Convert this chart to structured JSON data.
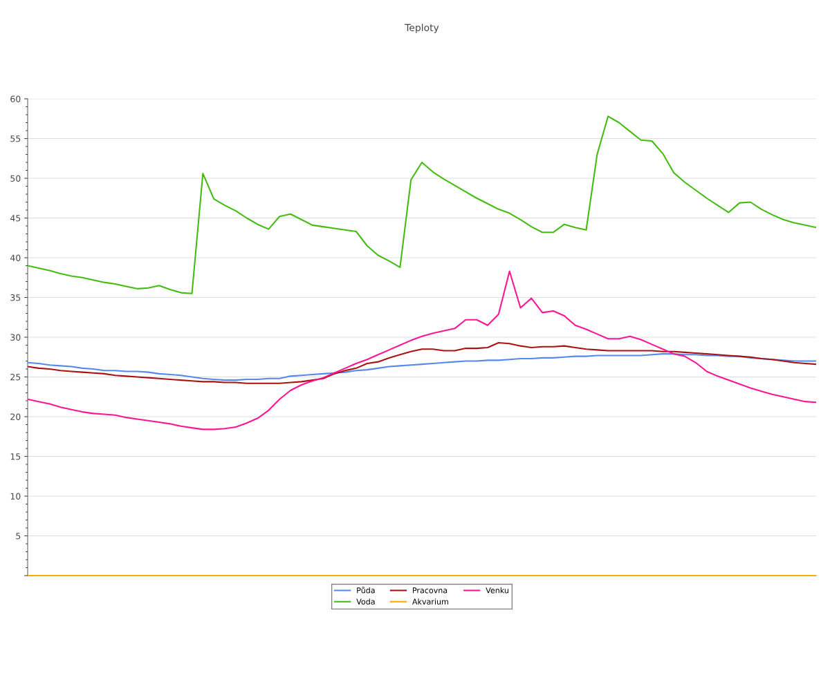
{
  "chart_data": {
    "type": "line",
    "title": "Teploty",
    "ylim": [
      0,
      60
    ],
    "categories": [
      null,
      null,
      null,
      null,
      null,
      null,
      null,
      null,
      null,
      null,
      null,
      null,
      null,
      null,
      null,
      null,
      null,
      null,
      null,
      null,
      null,
      null,
      null,
      null,
      null,
      null,
      null,
      null,
      null,
      null,
      null,
      null,
      null,
      null,
      null,
      null,
      null,
      null,
      null,
      null,
      null,
      null,
      null,
      null,
      null,
      null,
      null,
      null,
      null,
      null,
      null,
      null,
      null,
      null,
      null,
      null,
      null,
      null,
      null,
      null,
      null,
      null,
      null,
      null,
      null,
      null,
      null,
      null,
      null,
      null,
      null,
      null,
      null
    ],
    "yticks": [
      {
        "value": 0,
        "label": null
      },
      5,
      10,
      15,
      20,
      25,
      30,
      35,
      40,
      45,
      50,
      55,
      60
    ],
    "tick_labels": "y",
    "grid": "y",
    "legend": "bottom",
    "marker": "none",
    "line_style": "solid",
    "series": [
      {
        "name": "Půda",
        "color": "#5588ee",
        "values": [
          26.8,
          26.7,
          26.5,
          26.4,
          26.3,
          26.1,
          26.0,
          25.8,
          25.8,
          25.7,
          25.7,
          25.6,
          25.4,
          25.3,
          25.2,
          25.0,
          24.8,
          24.7,
          24.6,
          24.6,
          24.7,
          24.7,
          24.8,
          24.8,
          25.1,
          25.2,
          25.3,
          25.4,
          25.5,
          25.6,
          25.8,
          25.9,
          26.1,
          26.3,
          26.4,
          26.5,
          26.6,
          26.7,
          26.8,
          26.9,
          27.0,
          27.0,
          27.1,
          27.1,
          27.2,
          27.3,
          27.3,
          27.4,
          27.4,
          27.5,
          27.6,
          27.6,
          27.7,
          27.7,
          27.7,
          27.7,
          27.7,
          27.8,
          27.9,
          27.9,
          27.8,
          27.8,
          27.7,
          27.7,
          27.6,
          27.6,
          27.4,
          27.3,
          27.2,
          27.1,
          27.0,
          27.0,
          27.0
        ]
      },
      {
        "name": "Voda",
        "color": "#44bb11",
        "values": [
          39.0,
          38.7,
          38.4,
          38.0,
          37.7,
          37.5,
          37.2,
          36.9,
          36.7,
          36.4,
          36.1,
          36.2,
          36.5,
          36.0,
          35.6,
          35.5,
          50.6,
          47.4,
          46.6,
          45.9,
          45.0,
          44.2,
          43.6,
          45.2,
          45.5,
          44.8,
          44.1,
          43.9,
          43.7,
          43.5,
          43.3,
          41.5,
          40.3,
          39.6,
          38.8,
          49.8,
          52.0,
          50.8,
          49.9,
          49.1,
          48.3,
          47.5,
          46.8,
          46.1,
          45.6,
          44.8,
          43.9,
          43.2,
          43.2,
          44.2,
          43.8,
          43.5,
          53.0,
          57.8,
          57.0,
          55.9,
          54.8,
          54.7,
          53.1,
          50.7,
          49.5,
          48.5,
          47.5,
          46.6,
          45.7,
          46.9,
          47.0,
          46.1,
          45.4,
          44.8,
          44.4,
          44.1,
          43.8
        ]
      },
      {
        "name": "Pracovna",
        "color": "#aa1111",
        "values": [
          26.3,
          26.1,
          26.0,
          25.8,
          25.7,
          25.6,
          25.5,
          25.4,
          25.2,
          25.1,
          25.0,
          24.9,
          24.8,
          24.7,
          24.6,
          24.5,
          24.4,
          24.4,
          24.3,
          24.3,
          24.2,
          24.2,
          24.2,
          24.2,
          24.3,
          24.4,
          24.6,
          24.8,
          25.4,
          25.8,
          26.1,
          26.7,
          26.9,
          27.4,
          27.8,
          28.2,
          28.5,
          28.5,
          28.3,
          28.3,
          28.6,
          28.6,
          28.7,
          29.3,
          29.2,
          28.9,
          28.7,
          28.8,
          28.8,
          28.9,
          28.7,
          28.5,
          28.4,
          28.3,
          28.3,
          28.3,
          28.3,
          28.3,
          28.2,
          28.2,
          28.1,
          28.0,
          27.9,
          27.8,
          27.7,
          27.6,
          27.5,
          27.3,
          27.2,
          27.0,
          26.8,
          26.7,
          26.6
        ]
      },
      {
        "name": "Akvarium",
        "color": "#ffaa00",
        "values": [
          0,
          0,
          0,
          0,
          0,
          0,
          0,
          0,
          0,
          0,
          0,
          0,
          0,
          0,
          0,
          0,
          0,
          0,
          0,
          0,
          0,
          0,
          0,
          0,
          0,
          0,
          0,
          0,
          0,
          0,
          0,
          0,
          0,
          0,
          0,
          0,
          0,
          0,
          0,
          0,
          0,
          0,
          0,
          0,
          0,
          0,
          0,
          0,
          0,
          0,
          0,
          0,
          0,
          0,
          0,
          0,
          0,
          0,
          0,
          0,
          0,
          0,
          0,
          0,
          0,
          0,
          0,
          0,
          0,
          0,
          0,
          0,
          0
        ]
      },
      {
        "name": "Venku",
        "color": "#ff1493",
        "values": [
          22.2,
          21.9,
          21.6,
          21.2,
          20.9,
          20.6,
          20.4,
          20.3,
          20.2,
          19.9,
          19.7,
          19.5,
          19.3,
          19.1,
          18.8,
          18.6,
          18.4,
          18.4,
          18.5,
          18.7,
          19.2,
          19.8,
          20.8,
          22.2,
          23.3,
          24.0,
          24.5,
          24.9,
          25.5,
          26.1,
          26.7,
          27.2,
          27.8,
          28.4,
          29.0,
          29.6,
          30.1,
          30.5,
          30.8,
          31.1,
          32.2,
          32.2,
          31.5,
          32.9,
          38.3,
          33.7,
          34.9,
          33.1,
          33.3,
          32.7,
          31.5,
          31.0,
          30.4,
          29.8,
          29.8,
          30.1,
          29.7,
          29.1,
          28.5,
          27.9,
          27.6,
          26.8,
          25.7,
          25.1,
          24.6,
          24.1,
          23.6,
          23.2,
          22.8,
          22.5,
          22.2,
          21.9,
          21.8
        ]
      }
    ]
  }
}
